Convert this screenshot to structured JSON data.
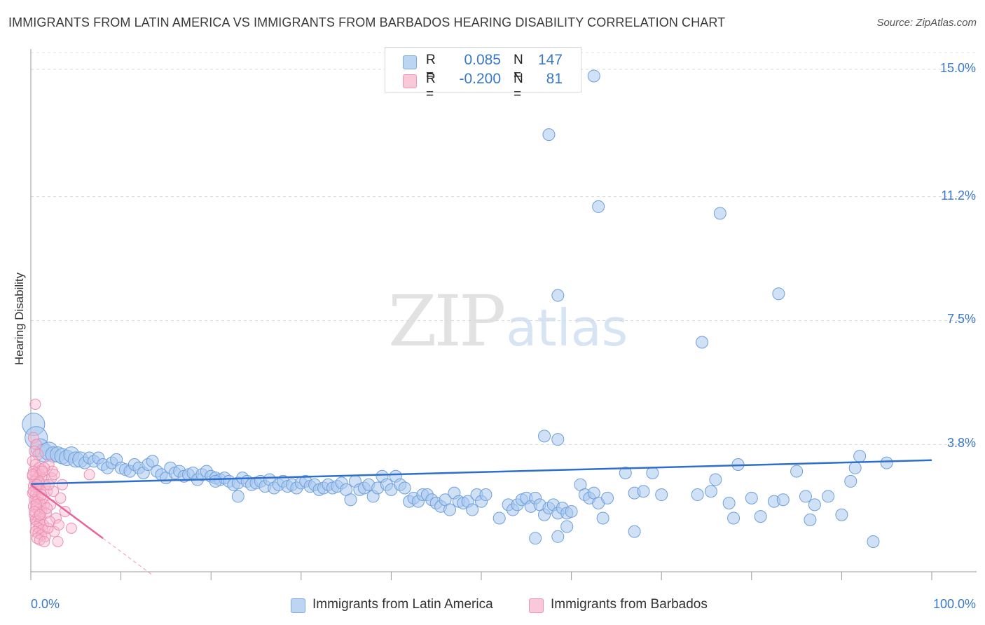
{
  "title": "IMMIGRANTS FROM LATIN AMERICA VS IMMIGRANTS FROM BARBADOS HEARING DISABILITY CORRELATION CHART",
  "source": "Source: ZipAtlas.com",
  "watermark": {
    "zip": "ZIP",
    "atlas": "atlas"
  },
  "colors": {
    "blue": "#3a78c9",
    "blue_fill": "#a9c8ef",
    "blue_line": "#2e6fcd",
    "pink": "#e8649a",
    "pink_fill": "#f6b9cf"
  },
  "legend": {
    "rows": [
      {
        "r_label": "R =",
        "r_value": "0.085",
        "n_label": "N =",
        "n_value": "147"
      },
      {
        "r_label": "R =",
        "r_value": "-0.200",
        "n_label": "N =",
        "n_value": "81"
      }
    ]
  },
  "bottom_legend": {
    "series1": "Immigrants from Latin America",
    "series2": "Immigrants from Barbados"
  },
  "chart_data": {
    "type": "scatter",
    "title": "IMMIGRANTS FROM LATIN AMERICA VS IMMIGRANTS FROM BARBADOS HEARING DISABILITY CORRELATION CHART",
    "xlabel": "",
    "ylabel": "Hearing Disability",
    "xlim": [
      0,
      100
    ],
    "ylim": [
      0,
      15.5
    ],
    "x_tick_labels": [
      "0.0%",
      "100.0%"
    ],
    "y_ticks": [
      3.8,
      7.5,
      11.2,
      15.0
    ],
    "y_tick_labels": [
      "3.8%",
      "7.5%",
      "11.2%",
      "15.0%"
    ],
    "series": [
      {
        "name": "Immigrants from Latin America",
        "trend": {
          "x0": 0,
          "y0": 2.62,
          "x1": 100,
          "y1": 3.33
        },
        "points": [
          [
            0.3,
            4.4
          ],
          [
            0.6,
            4.0
          ],
          [
            1.0,
            3.7
          ],
          [
            1.5,
            3.55
          ],
          [
            2.0,
            3.6
          ],
          [
            2.5,
            3.5
          ],
          [
            3.0,
            3.5
          ],
          [
            3.5,
            3.45
          ],
          [
            4.0,
            3.4
          ],
          [
            4.5,
            3.5
          ],
          [
            5.0,
            3.35
          ],
          [
            5.5,
            3.35
          ],
          [
            6.0,
            3.25
          ],
          [
            6.5,
            3.4
          ],
          [
            7.0,
            3.3
          ],
          [
            7.5,
            3.4
          ],
          [
            8.0,
            3.2
          ],
          [
            8.5,
            3.1
          ],
          [
            9.0,
            3.25
          ],
          [
            9.5,
            3.35
          ],
          [
            10.0,
            3.1
          ],
          [
            10.5,
            3.05
          ],
          [
            11.0,
            3.0
          ],
          [
            11.5,
            3.2
          ],
          [
            12.0,
            3.1
          ],
          [
            12.5,
            2.95
          ],
          [
            13.0,
            3.2
          ],
          [
            13.5,
            3.3
          ],
          [
            14.0,
            3.0
          ],
          [
            14.5,
            2.9
          ],
          [
            15.0,
            2.8
          ],
          [
            15.5,
            3.1
          ],
          [
            16.0,
            2.95
          ],
          [
            16.5,
            3.0
          ],
          [
            17.0,
            2.85
          ],
          [
            17.5,
            2.9
          ],
          [
            18.0,
            2.95
          ],
          [
            18.5,
            2.75
          ],
          [
            19.0,
            2.9
          ],
          [
            19.5,
            3.0
          ],
          [
            20.0,
            2.85
          ],
          [
            20.5,
            2.8
          ],
          [
            21.0,
            2.75
          ],
          [
            21.5,
            2.8
          ],
          [
            22.0,
            2.7
          ],
          [
            22.5,
            2.6
          ],
          [
            23.0,
            2.65
          ],
          [
            23.5,
            2.8
          ],
          [
            24.0,
            2.7
          ],
          [
            24.5,
            2.6
          ],
          [
            25.0,
            2.65
          ],
          [
            25.5,
            2.7
          ],
          [
            26.0,
            2.55
          ],
          [
            26.5,
            2.75
          ],
          [
            27.0,
            2.5
          ],
          [
            27.5,
            2.6
          ],
          [
            28.0,
            2.7
          ],
          [
            28.5,
            2.55
          ],
          [
            29.0,
            2.6
          ],
          [
            29.5,
            2.5
          ],
          [
            30.0,
            2.65
          ],
          [
            30.5,
            2.7
          ],
          [
            31.0,
            2.55
          ],
          [
            31.5,
            2.6
          ],
          [
            32.0,
            2.45
          ],
          [
            32.5,
            2.5
          ],
          [
            33.0,
            2.6
          ],
          [
            33.5,
            2.5
          ],
          [
            34.0,
            2.55
          ],
          [
            34.5,
            2.65
          ],
          [
            35.0,
            2.45
          ],
          [
            35.5,
            2.15
          ],
          [
            36.0,
            2.7
          ],
          [
            36.5,
            2.45
          ],
          [
            37.0,
            2.5
          ],
          [
            37.5,
            2.6
          ],
          [
            38.0,
            2.25
          ],
          [
            38.5,
            2.5
          ],
          [
            39.0,
            2.85
          ],
          [
            39.5,
            2.6
          ],
          [
            40.0,
            2.45
          ],
          [
            40.5,
            2.85
          ],
          [
            41.0,
            2.6
          ],
          [
            41.5,
            2.5
          ],
          [
            42.0,
            2.1
          ],
          [
            42.5,
            2.2
          ],
          [
            43.0,
            2.1
          ],
          [
            43.5,
            2.3
          ],
          [
            44.0,
            2.3
          ],
          [
            44.5,
            2.15
          ],
          [
            45.0,
            2.05
          ],
          [
            45.5,
            1.95
          ],
          [
            46.0,
            2.15
          ],
          [
            46.5,
            1.85
          ],
          [
            47.0,
            2.35
          ],
          [
            47.5,
            2.1
          ],
          [
            48.0,
            2.05
          ],
          [
            48.5,
            2.1
          ],
          [
            49.0,
            1.85
          ],
          [
            49.5,
            2.3
          ],
          [
            50.0,
            2.1
          ],
          [
            50.5,
            2.3
          ],
          [
            52.0,
            1.6
          ],
          [
            53.0,
            2.0
          ],
          [
            53.5,
            1.85
          ],
          [
            54.0,
            2.0
          ],
          [
            54.5,
            2.15
          ],
          [
            55.0,
            2.2
          ],
          [
            55.5,
            1.95
          ],
          [
            56.0,
            2.2
          ],
          [
            56.5,
            2.0
          ],
          [
            57.0,
            1.7
          ],
          [
            57.5,
            1.9
          ],
          [
            58.0,
            2.0
          ],
          [
            58.5,
            1.75
          ],
          [
            59.0,
            1.9
          ],
          [
            59.5,
            1.75
          ],
          [
            60.0,
            1.8
          ],
          [
            61.0,
            2.6
          ],
          [
            61.5,
            2.3
          ],
          [
            62.0,
            2.2
          ],
          [
            62.5,
            2.35
          ],
          [
            63.0,
            2.05
          ],
          [
            63.5,
            1.6
          ],
          [
            64.0,
            2.2
          ],
          [
            66.0,
            2.95
          ],
          [
            67.0,
            2.35
          ],
          [
            68.0,
            2.4
          ],
          [
            69.0,
            2.95
          ],
          [
            70.0,
            2.3
          ],
          [
            74.0,
            2.3
          ],
          [
            75.5,
            2.4
          ],
          [
            76.0,
            2.75
          ],
          [
            77.5,
            2.05
          ],
          [
            78.0,
            1.6
          ],
          [
            78.5,
            3.2
          ],
          [
            80.0,
            2.2
          ],
          [
            81.0,
            1.65
          ],
          [
            82.5,
            2.1
          ],
          [
            83.5,
            2.15
          ],
          [
            85.0,
            3.0
          ],
          [
            86.0,
            2.25
          ],
          [
            86.5,
            1.55
          ],
          [
            87.0,
            2.0
          ],
          [
            88.5,
            2.25
          ],
          [
            90.0,
            1.7
          ],
          [
            91.0,
            2.7
          ],
          [
            91.5,
            3.1
          ],
          [
            92.0,
            3.45
          ],
          [
            93.5,
            0.9
          ],
          [
            95.0,
            3.25
          ],
          [
            57.0,
            4.05
          ],
          [
            58.5,
            3.95
          ],
          [
            56.0,
            1.0
          ],
          [
            58.5,
            1.05
          ],
          [
            59.5,
            1.35
          ],
          [
            67.0,
            1.2
          ],
          [
            62.5,
            14.8
          ],
          [
            57.5,
            13.05
          ],
          [
            63.0,
            10.9
          ],
          [
            76.5,
            10.7
          ],
          [
            58.5,
            8.25
          ],
          [
            83.0,
            8.3
          ],
          [
            74.5,
            6.85
          ],
          [
            23.0,
            2.25
          ],
          [
            20.5,
            2.7
          ]
        ]
      },
      {
        "name": "Immigrants from Barbados",
        "trend": {
          "x0": 0,
          "y0": 2.6,
          "x1": 8,
          "y1": 1.0
        },
        "trend_extension": {
          "x0": 8,
          "y0": 1.0,
          "x1": 13.5,
          "y1": -0.1
        },
        "points": [
          [
            0.5,
            5.0
          ],
          [
            0.3,
            4.0
          ],
          [
            0.6,
            3.8
          ],
          [
            0.4,
            3.6
          ],
          [
            0.8,
            3.5
          ],
          [
            0.2,
            3.3
          ],
          [
            0.5,
            3.2
          ],
          [
            0.9,
            3.1
          ],
          [
            1.2,
            3.05
          ],
          [
            0.3,
            3.0
          ],
          [
            0.6,
            2.95
          ],
          [
            1.0,
            2.9
          ],
          [
            0.2,
            2.85
          ],
          [
            0.7,
            2.8
          ],
          [
            1.4,
            2.75
          ],
          [
            0.4,
            2.7
          ],
          [
            0.9,
            2.65
          ],
          [
            1.6,
            2.6
          ],
          [
            0.3,
            2.55
          ],
          [
            0.6,
            2.5
          ],
          [
            1.1,
            2.45
          ],
          [
            1.8,
            2.4
          ],
          [
            0.2,
            2.35
          ],
          [
            0.5,
            2.3
          ],
          [
            0.8,
            2.25
          ],
          [
            1.3,
            2.2
          ],
          [
            0.4,
            2.15
          ],
          [
            0.7,
            2.1
          ],
          [
            1.0,
            2.05
          ],
          [
            1.5,
            2.0
          ],
          [
            0.3,
            1.95
          ],
          [
            0.6,
            1.9
          ],
          [
            0.9,
            1.85
          ],
          [
            1.2,
            1.8
          ],
          [
            1.7,
            1.75
          ],
          [
            0.4,
            1.7
          ],
          [
            0.8,
            1.65
          ],
          [
            1.1,
            1.6
          ],
          [
            0.5,
            1.55
          ],
          [
            0.7,
            1.5
          ],
          [
            1.0,
            1.45
          ],
          [
            1.4,
            1.4
          ],
          [
            0.6,
            1.35
          ],
          [
            0.9,
            1.3
          ],
          [
            1.3,
            1.25
          ],
          [
            0.5,
            1.2
          ],
          [
            0.8,
            1.15
          ],
          [
            1.2,
            1.1
          ],
          [
            1.6,
            1.05
          ],
          [
            0.7,
            1.0
          ],
          [
            1.0,
            0.95
          ],
          [
            1.5,
            0.9
          ],
          [
            2.0,
            3.2
          ],
          [
            2.3,
            2.8
          ],
          [
            2.5,
            2.4
          ],
          [
            2.2,
            2.0
          ],
          [
            2.8,
            1.6
          ],
          [
            2.6,
            1.2
          ],
          [
            3.0,
            0.9
          ],
          [
            3.5,
            2.6
          ],
          [
            3.3,
            2.2
          ],
          [
            3.8,
            1.8
          ],
          [
            2.0,
            2.6
          ],
          [
            1.9,
            1.3
          ],
          [
            2.4,
            3.0
          ],
          [
            0.3,
            2.4
          ],
          [
            0.6,
            2.0
          ],
          [
            0.9,
            2.7
          ],
          [
            1.2,
            2.3
          ],
          [
            1.5,
            3.1
          ],
          [
            0.4,
            1.8
          ],
          [
            0.7,
            2.6
          ],
          [
            1.0,
            1.7
          ],
          [
            0.2,
            2.9
          ],
          [
            1.8,
            1.9
          ],
          [
            2.1,
            1.5
          ],
          [
            2.6,
            2.9
          ],
          [
            3.1,
            1.4
          ],
          [
            4.5,
            1.3
          ],
          [
            6.5,
            2.9
          ],
          [
            1.3,
            3.0
          ]
        ]
      }
    ]
  }
}
